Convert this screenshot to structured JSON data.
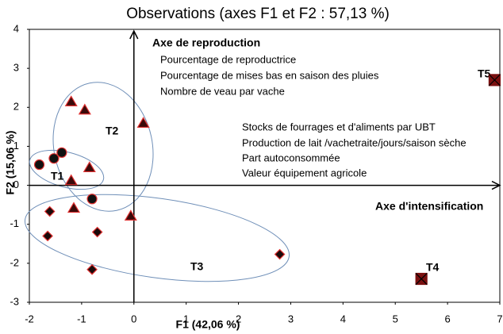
{
  "chart_data": {
    "type": "scatter",
    "title": "Observations (axes F1 et F2 : 57,13 %)",
    "x_label": "F1 (42,06 %)",
    "y_label": "F2 (15,06 %)",
    "xlim": [
      -2,
      7
    ],
    "ylim": [
      -3,
      4
    ],
    "xticks": [
      -2,
      -1,
      0,
      1,
      2,
      3,
      4,
      5,
      6,
      7
    ],
    "yticks": [
      -3,
      -2,
      -1,
      0,
      1,
      2,
      3,
      4
    ],
    "series": [
      {
        "marker": "triangle",
        "color": "#3a0a0a",
        "edge": "#e03030",
        "x": [
          -1.2,
          -0.94,
          0.18,
          -0.85,
          -1.2,
          -1.15,
          -0.06
        ],
        "y": [
          2.14,
          1.93,
          1.59,
          0.45,
          0.12,
          -0.59,
          -0.79
        ]
      },
      {
        "marker": "circle",
        "color": "#111111",
        "edge": "#e03030",
        "x": [
          -1.81,
          -1.53,
          -1.38,
          -0.8
        ],
        "y": [
          0.53,
          0.69,
          0.84,
          -0.35
        ]
      },
      {
        "marker": "diamond",
        "color": "#1a0a0a",
        "edge": "#e03030",
        "x": [
          -1.61,
          -1.65,
          -0.7,
          -0.8,
          2.79
        ],
        "y": [
          -0.67,
          -1.3,
          -1.2,
          -2.16,
          -1.77
        ]
      },
      {
        "marker": "square-x",
        "color": "#7a1010",
        "edge": "#000000",
        "x": [
          5.5,
          6.9
        ],
        "y": [
          -2.4,
          2.7
        ]
      }
    ],
    "annotations": {
      "reproduction_title": "Axe de reproduction",
      "reproduction_items": [
        "Pourcentage de reproductrice",
        "Pourcentage de mises bas en saison des pluies",
        "Nombre de veau par vache"
      ],
      "intensification_items": [
        "Stocks de fourrages et d'aliments par UBT",
        "Production de lait /vachetraite/jours/saison sèche",
        "Part autoconsommée",
        "Valeur équipement agricole"
      ],
      "intensification_title": "Axe d'intensification",
      "groups": [
        "T1",
        "T2",
        "T3",
        "T4",
        "T5"
      ]
    }
  }
}
